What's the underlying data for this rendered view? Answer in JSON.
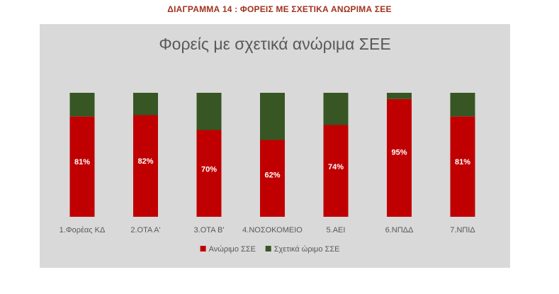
{
  "caption": "ΔΙΑΓΡΑΜΜΑ 14 : ΦΟΡΕΙΣ ΜΕ ΣΧΕΤΙΚΑ ΑΝΩΡΙΜΑ ΣΕΕ",
  "chart_data": {
    "type": "bar",
    "stacked": true,
    "title": "Φορείς με σχετικά ανώριμα ΣΕΕ",
    "xlabel": "",
    "ylabel": "",
    "ylim": [
      0,
      1
    ],
    "grid": false,
    "legend_position": "bottom",
    "categories": [
      "1.Φορέας ΚΔ",
      "2.ΟΤΑ Α'",
      "3.ΟΤΑ Β'",
      "4.ΝΟΣΟΚΟΜΕΙΟ",
      "5.ΑΕΙ",
      "6.ΝΠΔΔ",
      "7.ΝΠΙΔ"
    ],
    "series": [
      {
        "name": "Ανώριμο ΣΣΕ",
        "color": "#c00000",
        "values": [
          0.81,
          0.82,
          0.7,
          0.62,
          0.74,
          0.95,
          0.81
        ],
        "labels": [
          "81%",
          "82%",
          "70%",
          "62%",
          "74%",
          "95%",
          "81%"
        ]
      },
      {
        "name": "Σχετικά ώριμο ΣΣΕ",
        "color": "#375623",
        "values": [
          0.19,
          0.18,
          0.3,
          0.38,
          0.26,
          0.05,
          0.19
        ]
      }
    ]
  },
  "colors": {
    "plot_background": "#d9d9d9",
    "caption": "#a0321e",
    "title": "#595959",
    "axis_text": "#595959",
    "data_label": "#ffffff"
  }
}
